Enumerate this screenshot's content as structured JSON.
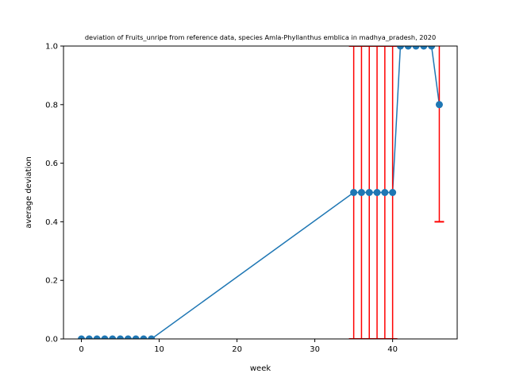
{
  "chart_data": {
    "type": "line",
    "title": "deviation of Fruits_unripe from reference data, species Amla-Phyllanthus emblica in madhya_pradesh, 2020",
    "xlabel": "week",
    "ylabel": "average deviation",
    "xlim": [
      -2.3,
      48.3
    ],
    "ylim": [
      0,
      1.0
    ],
    "x_ticks": [
      0,
      10,
      20,
      30,
      40
    ],
    "y_ticks": [
      0.0,
      0.2,
      0.4,
      0.6,
      0.8,
      1.0
    ],
    "x_tick_labels": [
      "0",
      "10",
      "20",
      "30",
      "40"
    ],
    "y_tick_labels": [
      "0.0",
      "0.2",
      "0.4",
      "0.6",
      "0.8",
      "1.0"
    ],
    "grid": false,
    "colors": {
      "line": "#1f77b4",
      "marker": "#1f77b4",
      "errorbar": "#ff0000"
    },
    "series": [
      {
        "x": [
          0,
          1,
          2,
          3,
          4,
          5,
          6,
          7,
          8,
          9,
          35,
          36,
          37,
          38,
          39,
          40,
          41,
          42,
          43,
          44,
          45,
          46
        ],
        "y": [
          0,
          0,
          0,
          0,
          0,
          0,
          0,
          0,
          0,
          0,
          0.5,
          0.5,
          0.5,
          0.5,
          0.5,
          0.5,
          1.0,
          1.0,
          1.0,
          1.0,
          1.0,
          0.8
        ],
        "yerr": [
          0,
          0,
          0,
          0,
          0,
          0,
          0,
          0,
          0,
          0,
          0.5,
          0.5,
          0.5,
          0.5,
          0.5,
          0.5,
          0,
          0,
          0,
          0,
          0,
          0.4
        ]
      }
    ]
  }
}
